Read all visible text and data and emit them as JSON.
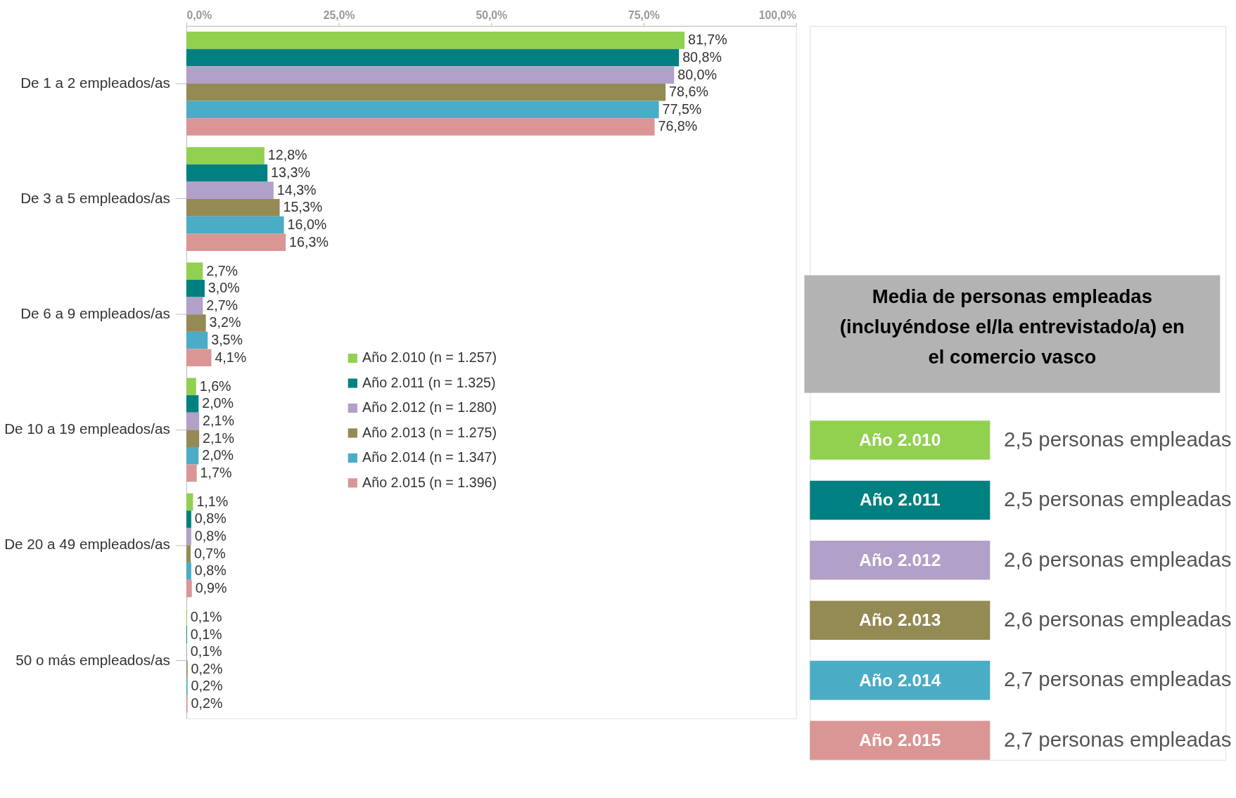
{
  "chart_data": [
    {
      "type": "bar",
      "orientation": "horizontal",
      "legend": "left",
      "categories": [
        "De 1 a 2 empleados/as",
        "De 3 a 5 empleados/as",
        "De 6 a 9 empleados/as",
        "De 10 a 19 empleados/as",
        "De 20 a 49 empleados/as",
        "50 o más empleados/as"
      ],
      "series": [
        {
          "name": "Año 2.010 (n = 1.257)",
          "color": "#92d050",
          "values": [
            81.7,
            12.8,
            2.7,
            1.6,
            1.1,
            0.1
          ],
          "value_labels": [
            "81,7%",
            "12,8%",
            "2,7%",
            "1,6%",
            "1,1%",
            "0,1%"
          ]
        },
        {
          "name": "Año 2.011 (n = 1.325)",
          "color": "#008080",
          "values": [
            80.8,
            13.3,
            3.0,
            2.0,
            0.8,
            0.1
          ],
          "value_labels": [
            "80,8%",
            "13,3%",
            "3,0%",
            "2,0%",
            "0,8%",
            "0,1%"
          ]
        },
        {
          "name": "Año 2.012 (n = 1.280)",
          "color": "#b1a0c7",
          "values": [
            80.0,
            14.3,
            2.7,
            2.1,
            0.8,
            0.1
          ],
          "value_labels": [
            "80,0%",
            "14,3%",
            "2,7%",
            "2,1%",
            "0,8%",
            "0,1%"
          ]
        },
        {
          "name": "Año 2.013 (n = 1.275)",
          "color": "#948a54",
          "values": [
            78.6,
            15.3,
            3.2,
            2.1,
            0.7,
            0.2
          ],
          "value_labels": [
            "78,6%",
            "15,3%",
            "3,2%",
            "2,1%",
            "0,7%",
            "0,2%"
          ]
        },
        {
          "name": "Año 2.014 (n = 1.347)",
          "color": "#4bacc6",
          "values": [
            77.5,
            16.0,
            3.5,
            2.0,
            0.8,
            0.2
          ],
          "value_labels": [
            "77,5%",
            "16,0%",
            "3,5%",
            "2,0%",
            "0,8%",
            "0,2%"
          ]
        },
        {
          "name": "Año 2.015 (n = 1.396)",
          "color": "#da9694",
          "values": [
            76.8,
            16.3,
            4.1,
            1.7,
            0.9,
            0.2
          ],
          "value_labels": [
            "76,8%",
            "16,3%",
            "4,1%",
            "1,7%",
            "0,9%",
            "0,2%"
          ]
        }
      ],
      "xlim": [
        0,
        100
      ],
      "xticks": [
        {
          "value": 0,
          "label": "0,0%"
        },
        {
          "value": 25,
          "label": "25,0%"
        },
        {
          "value": 50,
          "label": "50,0%"
        },
        {
          "value": 75,
          "label": "75,0%"
        },
        {
          "value": 100,
          "label": "100,0%"
        }
      ],
      "grid": false
    },
    {
      "type": "other",
      "title": "Media de personas empleadas (incluyéndose el/la entrevistado/a) en el comercio vasco",
      "categories": [
        "Año 2.010",
        "Año 2.011",
        "Año 2.012",
        "Año 2.013",
        "Año 2.014",
        "Año 2.015"
      ],
      "value_labels": [
        "2,5 personas empleadas",
        "2,5 personas empleadas",
        "2,6 personas empleadas",
        "2,6 personas empleadas",
        "2,7 personas empleadas",
        "2,7 personas empleadas"
      ],
      "colors": [
        "#92d050",
        "#008080",
        "#b1a0c7",
        "#948a54",
        "#4bacc6",
        "#da9694"
      ]
    }
  ]
}
